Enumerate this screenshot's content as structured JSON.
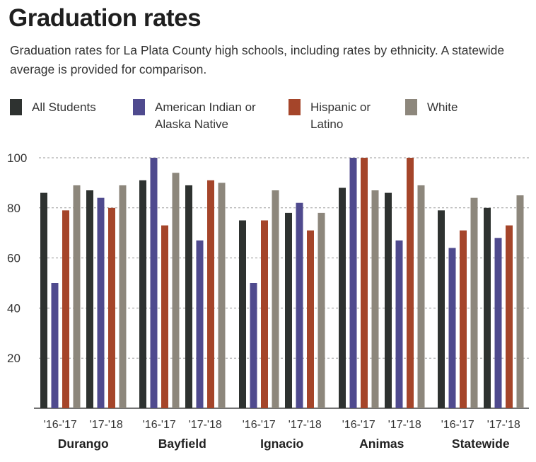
{
  "title": "Graduation rates",
  "subtitle": "Graduation rates for La Plata County high schools, including rates by ethnicity. A statewide average is provided for comparison.",
  "legend": [
    {
      "name": "All Students",
      "color": "#2e3230"
    },
    {
      "name": "American Indian or Alaska Native",
      "color": "#4f4a8e"
    },
    {
      "name": "Hispanic or Latino",
      "color": "#a5452a"
    },
    {
      "name": "White",
      "color": "#8d877c"
    }
  ],
  "chart_data": {
    "type": "bar",
    "title": "Graduation rates",
    "ylim": [
      0,
      100
    ],
    "yticks": [
      20,
      40,
      60,
      80,
      100
    ],
    "grid": "horizontal-dashed",
    "legend_position": "top",
    "groups": [
      "Durango",
      "Bayfield",
      "Ignacio",
      "Animas",
      "Statewide"
    ],
    "periods": [
      "'16-'17",
      "'17-'18"
    ],
    "series": [
      {
        "name": "All Students",
        "values": [
          [
            86,
            87
          ],
          [
            91,
            89
          ],
          [
            75,
            78
          ],
          [
            88,
            86
          ],
          [
            79,
            80
          ]
        ]
      },
      {
        "name": "American Indian or Alaska Native",
        "values": [
          [
            50,
            84
          ],
          [
            100,
            67
          ],
          [
            50,
            82
          ],
          [
            100,
            67
          ],
          [
            64,
            68
          ]
        ]
      },
      {
        "name": "Hispanic or Latino",
        "values": [
          [
            79,
            80
          ],
          [
            73,
            91
          ],
          [
            75,
            71
          ],
          [
            100,
            100
          ],
          [
            71,
            73
          ]
        ]
      },
      {
        "name": "White",
        "values": [
          [
            89,
            89
          ],
          [
            94,
            90
          ],
          [
            87,
            78
          ],
          [
            87,
            89
          ],
          [
            84,
            85
          ]
        ]
      }
    ]
  }
}
